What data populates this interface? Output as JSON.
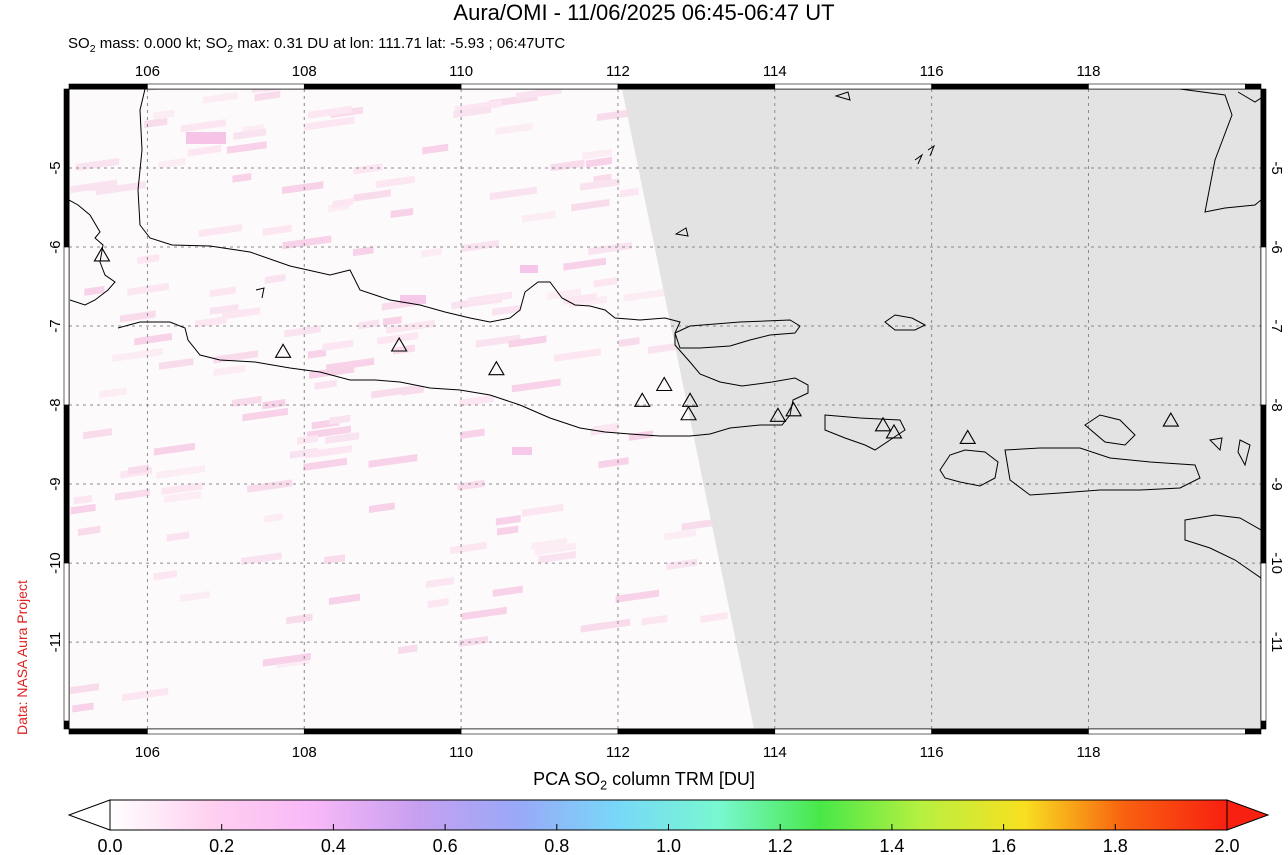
{
  "header": {
    "title": "Aura/OMI - 11/06/2025 06:45-06:47 UT",
    "subtitle_parts": {
      "p1": "SO",
      "s1": "2",
      "p2": " mass: 0.000 kt; SO",
      "s2": "2",
      "p3": " max: 0.31 DU at lon: 111.71 lat: -5.93 ; 06:47UTC"
    }
  },
  "credit": "Data: NASA Aura Project",
  "map": {
    "lon_range": [
      105.0,
      120.2
    ],
    "lat_range": [
      -12.1,
      -4.0
    ],
    "lon_ticks": [
      "106",
      "108",
      "110",
      "112",
      "114",
      "116",
      "118"
    ],
    "lat_ticks": [
      "-5",
      "-6",
      "-7",
      "-8",
      "-9",
      "-10",
      "-11"
    ],
    "no_data_color": "#e3e3e3",
    "coastline_color": "#000000",
    "grid": "dashed",
    "volcanoes": [
      {
        "lon": 105.42,
        "lat": -6.1
      },
      {
        "lon": 107.73,
        "lat": -7.32
      },
      {
        "lon": 109.21,
        "lat": -7.24
      },
      {
        "lon": 110.45,
        "lat": -7.54
      },
      {
        "lon": 112.31,
        "lat": -7.94
      },
      {
        "lon": 112.59,
        "lat": -7.74
      },
      {
        "lon": 112.92,
        "lat": -7.94
      },
      {
        "lon": 112.9,
        "lat": -8.11
      },
      {
        "lon": 114.04,
        "lat": -8.13
      },
      {
        "lon": 114.24,
        "lat": -8.06
      },
      {
        "lon": 115.38,
        "lat": -8.25
      },
      {
        "lon": 115.52,
        "lat": -8.34
      },
      {
        "lon": 116.46,
        "lat": -8.41
      },
      {
        "lon": 119.05,
        "lat": -8.19
      }
    ]
  },
  "colorbar": {
    "title_parts": {
      "p1": "PCA SO",
      "s1": "2",
      "p2": " column TRM [DU]"
    },
    "min": 0.0,
    "max": 2.0,
    "tick_labels": [
      "0.0",
      "0.2",
      "0.4",
      "0.6",
      "0.8",
      "1.0",
      "1.2",
      "1.4",
      "1.6",
      "1.8",
      "2.0"
    ],
    "stops": [
      "#ffffff",
      "#ffd0f0",
      "#f8b8f8",
      "#c8a0f0",
      "#9aa8f8",
      "#78d8f8",
      "#78f8d0",
      "#48e848",
      "#b8f040",
      "#f8e020",
      "#f86010",
      "#f82010"
    ]
  }
}
